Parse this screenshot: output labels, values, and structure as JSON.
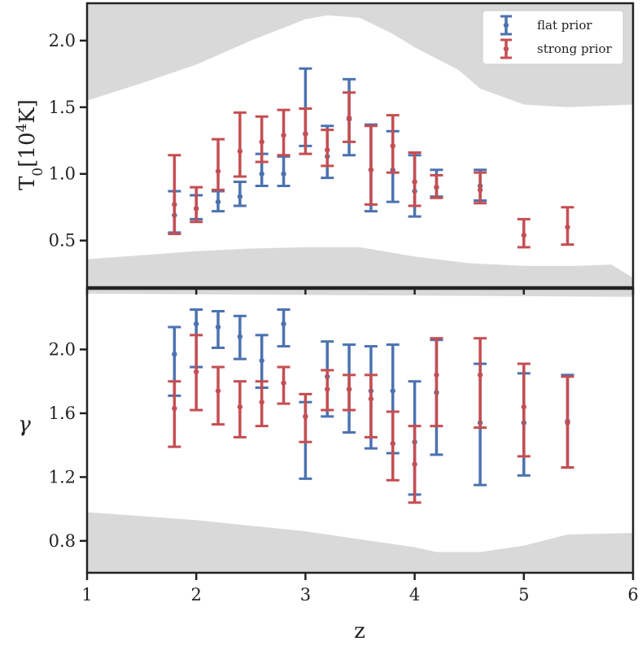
{
  "chart_data": {
    "type": "errorbar",
    "shared_x": {
      "label": "z",
      "range": [
        1,
        6
      ],
      "ticks": [
        1,
        2,
        3,
        4,
        5,
        6
      ],
      "tick_labels": [
        "1",
        "2",
        "3",
        "4",
        "5",
        "6"
      ]
    },
    "legend": {
      "position": "top-right",
      "entries": [
        {
          "name": "flat prior",
          "color": "#4C72B0"
        },
        {
          "name": "strong prior",
          "color": "#C44E52"
        }
      ]
    },
    "panels": [
      {
        "id": "T0",
        "ylabel_main": "T",
        "ylabel_sub": "0",
        "ylabel_open": "[10",
        "ylabel_sup": "4",
        "ylabel_close": "K]",
        "ylim": [
          0.15,
          2.28
        ],
        "yticks": [
          0.5,
          1.0,
          1.5,
          2.0
        ],
        "ytick_labels": [
          "0.5",
          "1.0",
          "1.5",
          "2.0"
        ],
        "band_lower": {
          "x": [
            1.0,
            2.0,
            2.5,
            3.0,
            3.5,
            4.0,
            4.5,
            5.0,
            5.5,
            5.8,
            6.0
          ],
          "y": [
            0.36,
            0.42,
            0.44,
            0.45,
            0.45,
            0.38,
            0.33,
            0.31,
            0.31,
            0.32,
            0.22
          ]
        },
        "band_upper": {
          "x": [
            1.0,
            1.5,
            2.0,
            2.5,
            3.0,
            3.2,
            3.5,
            3.8,
            4.0,
            4.4,
            4.6,
            5.0,
            5.4,
            6.0
          ],
          "y": [
            1.55,
            1.68,
            1.82,
            2.0,
            2.16,
            2.19,
            2.17,
            2.05,
            1.95,
            1.78,
            1.64,
            1.52,
            1.5,
            1.52
          ]
        },
        "series": [
          {
            "name": "flat prior",
            "color": "#4C72B0",
            "points": [
              {
                "x": 1.8,
                "y": 0.69,
                "lo": 0.56,
                "hi": 0.87
              },
              {
                "x": 2.0,
                "y": 0.74,
                "lo": 0.66,
                "hi": 0.84
              },
              {
                "x": 2.2,
                "y": 0.79,
                "lo": 0.72,
                "hi": 0.87
              },
              {
                "x": 2.4,
                "y": 0.83,
                "lo": 0.76,
                "hi": 0.94
              },
              {
                "x": 2.6,
                "y": 1.0,
                "lo": 0.91,
                "hi": 1.15
              },
              {
                "x": 2.8,
                "y": 1.0,
                "lo": 0.91,
                "hi": 1.13
              },
              {
                "x": 3.0,
                "y": 1.3,
                "lo": 1.21,
                "hi": 1.79
              },
              {
                "x": 3.2,
                "y": 1.13,
                "lo": 0.97,
                "hi": 1.36
              },
              {
                "x": 3.4,
                "y": 1.41,
                "lo": 1.14,
                "hi": 1.71
              },
              {
                "x": 3.6,
                "y": 1.03,
                "lo": 0.72,
                "hi": 1.37
              },
              {
                "x": 3.8,
                "y": 1.03,
                "lo": 0.79,
                "hi": 1.32
              },
              {
                "x": 4.0,
                "y": 0.87,
                "lo": 0.68,
                "hi": 1.14
              },
              {
                "x": 4.2,
                "y": 0.9,
                "lo": 0.83,
                "hi": 1.03
              },
              {
                "x": 4.6,
                "y": 0.91,
                "lo": 0.8,
                "hi": 1.03
              }
            ]
          },
          {
            "name": "strong prior",
            "color": "#C44E52",
            "points": [
              {
                "x": 1.8,
                "y": 0.77,
                "lo": 0.55,
                "hi": 1.14
              },
              {
                "x": 2.0,
                "y": 0.74,
                "lo": 0.64,
                "hi": 0.9
              },
              {
                "x": 2.2,
                "y": 1.02,
                "lo": 0.88,
                "hi": 1.26
              },
              {
                "x": 2.4,
                "y": 1.17,
                "lo": 0.98,
                "hi": 1.46
              },
              {
                "x": 2.6,
                "y": 1.24,
                "lo": 1.09,
                "hi": 1.43
              },
              {
                "x": 2.8,
                "y": 1.29,
                "lo": 1.14,
                "hi": 1.48
              },
              {
                "x": 3.0,
                "y": 1.3,
                "lo": 1.15,
                "hi": 1.49
              },
              {
                "x": 3.2,
                "y": 1.18,
                "lo": 1.06,
                "hi": 1.33
              },
              {
                "x": 3.4,
                "y": 1.42,
                "lo": 1.24,
                "hi": 1.61
              },
              {
                "x": 3.6,
                "y": 1.03,
                "lo": 0.77,
                "hi": 1.36
              },
              {
                "x": 3.8,
                "y": 1.21,
                "lo": 1.01,
                "hi": 1.44
              },
              {
                "x": 4.0,
                "y": 0.94,
                "lo": 0.76,
                "hi": 1.16
              },
              {
                "x": 4.2,
                "y": 0.9,
                "lo": 0.82,
                "hi": 0.99
              },
              {
                "x": 4.6,
                "y": 0.88,
                "lo": 0.78,
                "hi": 1.01
              },
              {
                "x": 5.0,
                "y": 0.54,
                "lo": 0.45,
                "hi": 0.66
              },
              {
                "x": 5.4,
                "y": 0.6,
                "lo": 0.47,
                "hi": 0.75
              }
            ]
          }
        ]
      },
      {
        "id": "gamma",
        "ylabel_main": "γ",
        "ylim": [
          0.6,
          2.38
        ],
        "yticks": [
          0.8,
          1.2,
          1.6,
          2.0
        ],
        "ytick_labels": [
          "0.8",
          "1.2",
          "1.6",
          "2.0"
        ],
        "band_lower": {
          "x": [
            1.0,
            2.0,
            3.0,
            3.5,
            4.0,
            4.2,
            4.6,
            5.0,
            5.4,
            6.0
          ],
          "y": [
            0.98,
            0.93,
            0.86,
            0.81,
            0.76,
            0.73,
            0.73,
            0.77,
            0.84,
            0.85
          ]
        },
        "band_upper": {
          "x": [
            1.0,
            6.0
          ],
          "y": [
            2.35,
            2.33
          ]
        },
        "series": [
          {
            "name": "flat prior",
            "color": "#4C72B0",
            "points": [
              {
                "x": 1.8,
                "y": 1.97,
                "lo": 1.71,
                "hi": 2.14
              },
              {
                "x": 2.0,
                "y": 2.16,
                "lo": 1.89,
                "hi": 2.25
              },
              {
                "x": 2.2,
                "y": 2.14,
                "lo": 2.01,
                "hi": 2.24
              },
              {
                "x": 2.4,
                "y": 2.08,
                "lo": 1.94,
                "hi": 2.21
              },
              {
                "x": 2.6,
                "y": 1.93,
                "lo": 1.76,
                "hi": 2.09
              },
              {
                "x": 2.8,
                "y": 2.16,
                "lo": 2.02,
                "hi": 2.25
              },
              {
                "x": 3.0,
                "y": 1.58,
                "lo": 1.19,
                "hi": 1.67
              },
              {
                "x": 3.2,
                "y": 1.83,
                "lo": 1.58,
                "hi": 2.05
              },
              {
                "x": 3.4,
                "y": 1.75,
                "lo": 1.48,
                "hi": 2.03
              },
              {
                "x": 3.6,
                "y": 1.74,
                "lo": 1.38,
                "hi": 2.02
              },
              {
                "x": 3.8,
                "y": 1.74,
                "lo": 1.35,
                "hi": 2.03
              },
              {
                "x": 4.0,
                "y": 1.42,
                "lo": 1.09,
                "hi": 1.8
              },
              {
                "x": 4.2,
                "y": 1.73,
                "lo": 1.34,
                "hi": 2.06
              },
              {
                "x": 4.6,
                "y": 1.54,
                "lo": 1.15,
                "hi": 1.91
              },
              {
                "x": 5.0,
                "y": 1.54,
                "lo": 1.21,
                "hi": 1.85
              },
              {
                "x": 5.4,
                "y": 1.55,
                "lo": 1.26,
                "hi": 1.84
              }
            ]
          },
          {
            "name": "strong prior",
            "color": "#C44E52",
            "points": [
              {
                "x": 1.8,
                "y": 1.63,
                "lo": 1.39,
                "hi": 1.8
              },
              {
                "x": 2.0,
                "y": 1.86,
                "lo": 1.62,
                "hi": 2.09
              },
              {
                "x": 2.2,
                "y": 1.74,
                "lo": 1.53,
                "hi": 1.89
              },
              {
                "x": 2.4,
                "y": 1.64,
                "lo": 1.45,
                "hi": 1.8
              },
              {
                "x": 2.6,
                "y": 1.67,
                "lo": 1.52,
                "hi": 1.8
              },
              {
                "x": 2.8,
                "y": 1.79,
                "lo": 1.66,
                "hi": 1.89
              },
              {
                "x": 3.0,
                "y": 1.58,
                "lo": 1.42,
                "hi": 1.72
              },
              {
                "x": 3.2,
                "y": 1.75,
                "lo": 1.62,
                "hi": 1.87
              },
              {
                "x": 3.4,
                "y": 1.75,
                "lo": 1.62,
                "hi": 1.84
              },
              {
                "x": 3.6,
                "y": 1.69,
                "lo": 1.45,
                "hi": 1.84
              },
              {
                "x": 3.8,
                "y": 1.41,
                "lo": 1.18,
                "hi": 1.61
              },
              {
                "x": 4.0,
                "y": 1.28,
                "lo": 1.04,
                "hi": 1.52
              },
              {
                "x": 4.2,
                "y": 1.84,
                "lo": 1.52,
                "hi": 2.07
              },
              {
                "x": 4.6,
                "y": 1.84,
                "lo": 1.51,
                "hi": 2.07
              },
              {
                "x": 5.0,
                "y": 1.64,
                "lo": 1.33,
                "hi": 1.91
              },
              {
                "x": 5.4,
                "y": 1.54,
                "lo": 1.26,
                "hi": 1.83
              }
            ]
          }
        ]
      }
    ]
  }
}
